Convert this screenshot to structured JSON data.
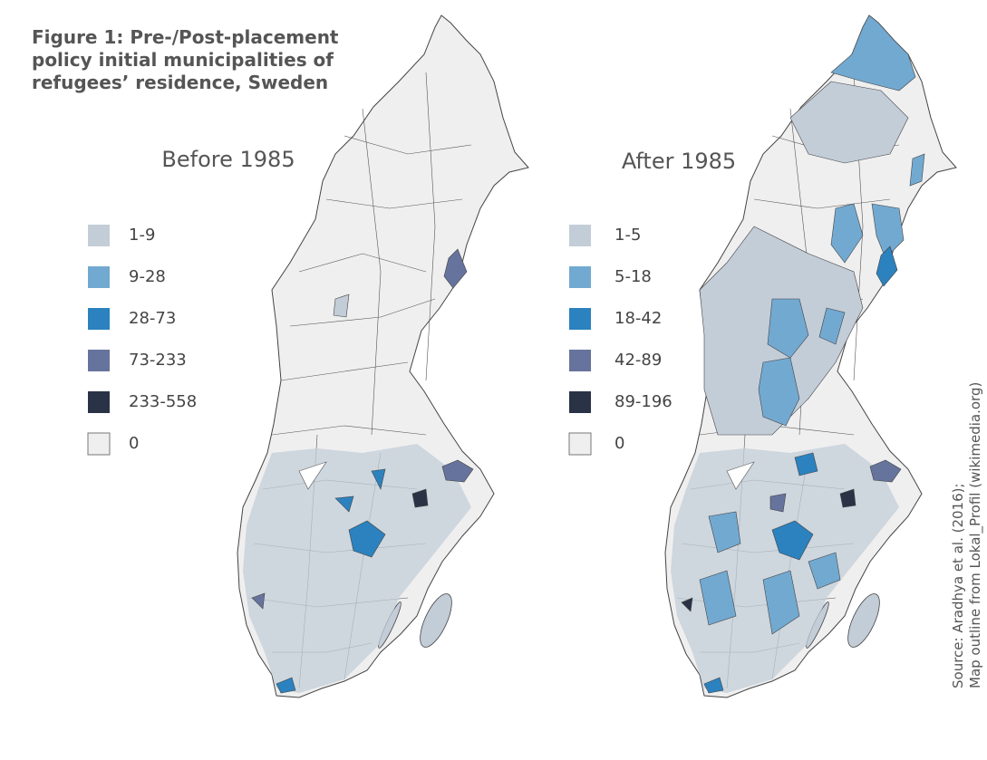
{
  "title": [
    "Figure 1: Pre-/Post-placement",
    "policy initial municipalities of",
    "refugees’ residence, Sweden"
  ],
  "maps": [
    {
      "title": "Before 1985",
      "legend": [
        {
          "label": "1-9",
          "color": "#c3cdd8"
        },
        {
          "label": "9-28",
          "color": "#72a9d1"
        },
        {
          "label": "28-73",
          "color": "#2b82bf"
        },
        {
          "label": "73-233",
          "color": "#66739c"
        },
        {
          "label": "233-558",
          "color": "#2a3345"
        },
        {
          "label": "0",
          "color": "#efefef"
        }
      ]
    },
    {
      "title": "After 1985",
      "legend": [
        {
          "label": "1-5",
          "color": "#c3cdd8"
        },
        {
          "label": "5-18",
          "color": "#72a9d1"
        },
        {
          "label": "18-42",
          "color": "#2b82bf"
        },
        {
          "label": "42-89",
          "color": "#66739c"
        },
        {
          "label": "89-196",
          "color": "#2a3345"
        },
        {
          "label": "0",
          "color": "#efefef"
        }
      ]
    }
  ],
  "source": [
    "Source: Aradhya et al. (2016);",
    "Map outline from Lokal_Profil (wikimedia.org)"
  ]
}
